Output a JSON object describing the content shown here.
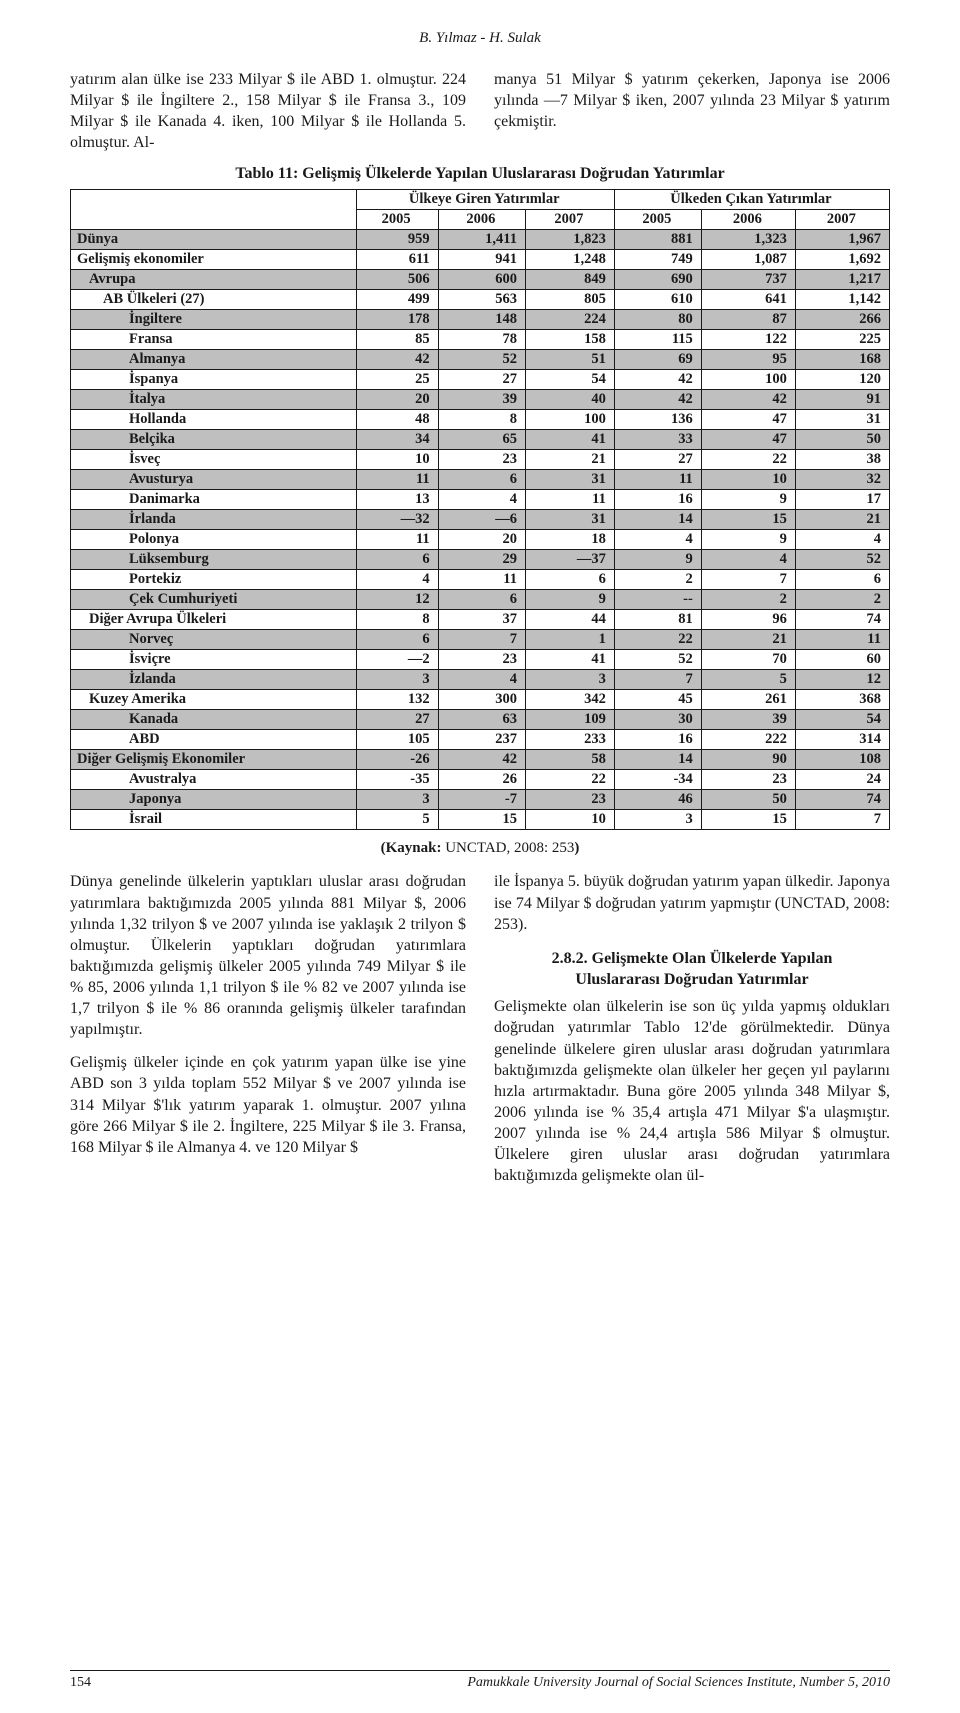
{
  "running_head": "B. Yılmaz - H. Sulak",
  "top_left_para": "yatırım alan ülke ise 233 Milyar $ ile ABD 1. olmuştur. 224 Milyar $ ile İngiltere 2., 158 Milyar $ ile Fransa 3., 109 Milyar $ ile Kanada 4. iken, 100 Milyar $ ile Hollanda 5. olmuştur. Al-",
  "top_right_para": "manya 51 Milyar $ yatırım çekerken, Japonya ise 2006 yılında —7 Milyar $ iken, 2007 yılında 23 Milyar $ yatırım çekmiştir.",
  "table_caption": "Tablo 11: Gelişmiş Ülkelerde Yapılan Uluslararası Doğrudan Yatırımlar",
  "table": {
    "group_headers": [
      "Ülkeye Giren Yatırımlar",
      "Ülkeden Çıkan Yatırımlar"
    ],
    "year_headers": [
      "2005",
      "2006",
      "2007",
      "2005",
      "2006",
      "2007"
    ],
    "rows": [
      {
        "label": "Dünya",
        "indent": 0,
        "shaded": true,
        "vals": [
          "959",
          "1,411",
          "1,823",
          "881",
          "1,323",
          "1,967"
        ]
      },
      {
        "label": "Gelişmiş ekonomiler",
        "indent": 0,
        "shaded": false,
        "vals": [
          "611",
          "941",
          "1,248",
          "749",
          "1,087",
          "1,692"
        ]
      },
      {
        "label": "Avrupa",
        "indent": 1,
        "shaded": true,
        "vals": [
          "506",
          "600",
          "849",
          "690",
          "737",
          "1,217"
        ]
      },
      {
        "label": "AB Ülkeleri (27)",
        "indent": 2,
        "shaded": false,
        "vals": [
          "499",
          "563",
          "805",
          "610",
          "641",
          "1,142"
        ]
      },
      {
        "label": "İngiltere",
        "indent": 3,
        "shaded": true,
        "vals": [
          "178",
          "148",
          "224",
          "80",
          "87",
          "266"
        ]
      },
      {
        "label": "Fransa",
        "indent": 3,
        "shaded": false,
        "vals": [
          "85",
          "78",
          "158",
          "115",
          "122",
          "225"
        ]
      },
      {
        "label": "Almanya",
        "indent": 3,
        "shaded": true,
        "vals": [
          "42",
          "52",
          "51",
          "69",
          "95",
          "168"
        ]
      },
      {
        "label": "İspanya",
        "indent": 3,
        "shaded": false,
        "vals": [
          "25",
          "27",
          "54",
          "42",
          "100",
          "120"
        ]
      },
      {
        "label": "İtalya",
        "indent": 3,
        "shaded": true,
        "vals": [
          "20",
          "39",
          "40",
          "42",
          "42",
          "91"
        ]
      },
      {
        "label": "Hollanda",
        "indent": 3,
        "shaded": false,
        "vals": [
          "48",
          "8",
          "100",
          "136",
          "47",
          "31"
        ]
      },
      {
        "label": "Belçika",
        "indent": 3,
        "shaded": true,
        "vals": [
          "34",
          "65",
          "41",
          "33",
          "47",
          "50"
        ]
      },
      {
        "label": "İsveç",
        "indent": 3,
        "shaded": false,
        "vals": [
          "10",
          "23",
          "21",
          "27",
          "22",
          "38"
        ]
      },
      {
        "label": "Avusturya",
        "indent": 3,
        "shaded": true,
        "vals": [
          "11",
          "6",
          "31",
          "11",
          "10",
          "32"
        ]
      },
      {
        "label": "Danimarka",
        "indent": 3,
        "shaded": false,
        "vals": [
          "13",
          "4",
          "11",
          "16",
          "9",
          "17"
        ]
      },
      {
        "label": "İrlanda",
        "indent": 3,
        "shaded": true,
        "vals": [
          "—32",
          "—6",
          "31",
          "14",
          "15",
          "21"
        ]
      },
      {
        "label": "Polonya",
        "indent": 3,
        "shaded": false,
        "vals": [
          "11",
          "20",
          "18",
          "4",
          "9",
          "4"
        ]
      },
      {
        "label": "Lüksemburg",
        "indent": 3,
        "shaded": true,
        "vals": [
          "6",
          "29",
          "—37",
          "9",
          "4",
          "52"
        ]
      },
      {
        "label": "Portekiz",
        "indent": 3,
        "shaded": false,
        "vals": [
          "4",
          "11",
          "6",
          "2",
          "7",
          "6"
        ]
      },
      {
        "label": "Çek Cumhuriyeti",
        "indent": 3,
        "shaded": true,
        "vals": [
          "12",
          "6",
          "9",
          "--",
          "2",
          "2"
        ]
      },
      {
        "label": "Diğer Avrupa Ülkeleri",
        "indent": 1,
        "shaded": false,
        "vals": [
          "8",
          "37",
          "44",
          "81",
          "96",
          "74"
        ]
      },
      {
        "label": "Norveç",
        "indent": 3,
        "shaded": true,
        "vals": [
          "6",
          "7",
          "1",
          "22",
          "21",
          "11"
        ]
      },
      {
        "label": "İsviçre",
        "indent": 3,
        "shaded": false,
        "vals": [
          "—2",
          "23",
          "41",
          "52",
          "70",
          "60"
        ]
      },
      {
        "label": "İzlanda",
        "indent": 3,
        "shaded": true,
        "vals": [
          "3",
          "4",
          "3",
          "7",
          "5",
          "12"
        ]
      },
      {
        "label": "Kuzey Amerika",
        "indent": 1,
        "shaded": false,
        "vals": [
          "132",
          "300",
          "342",
          "45",
          "261",
          "368"
        ]
      },
      {
        "label": "Kanada",
        "indent": 3,
        "shaded": true,
        "vals": [
          "27",
          "63",
          "109",
          "30",
          "39",
          "54"
        ]
      },
      {
        "label": "ABD",
        "indent": 3,
        "shaded": false,
        "vals": [
          "105",
          "237",
          "233",
          "16",
          "222",
          "314"
        ]
      },
      {
        "label": "Diğer Gelişmiş Ekonomiler",
        "indent": 0,
        "shaded": true,
        "vals": [
          "-26",
          "42",
          "58",
          "14",
          "90",
          "108"
        ]
      },
      {
        "label": "Avustralya",
        "indent": 3,
        "shaded": false,
        "vals": [
          "-35",
          "26",
          "22",
          "-34",
          "23",
          "24"
        ]
      },
      {
        "label": "Japonya",
        "indent": 3,
        "shaded": true,
        "vals": [
          "3",
          "-7",
          "23",
          "46",
          "50",
          "74"
        ]
      },
      {
        "label": "İsrail",
        "indent": 3,
        "shaded": false,
        "vals": [
          "5",
          "15",
          "10",
          "3",
          "15",
          "7"
        ]
      }
    ],
    "shaded_bg": "#bfbfbf"
  },
  "source_label": "(Kaynak:",
  "source_text": " UNCTAD, 2008: 253",
  "source_close": ")",
  "bottom_left_p1": "Dünya genelinde ülkelerin yaptıkları uluslar arası doğrudan yatırımlara baktığımızda 2005 yılında 881 Milyar $, 2006 yılında 1,32 trilyon $ ve 2007 yılında ise yaklaşık 2 trilyon $ olmuştur. Ülkelerin yaptıkları doğrudan yatırımlara baktığımızda gelişmiş ülkeler 2005 yılında 749 Milyar $ ile % 85, 2006 yılında 1,1 trilyon $ ile % 82 ve 2007 yılında ise 1,7 trilyon $ ile % 86 oranında gelişmiş ülkeler tarafından yapılmıştır.",
  "bottom_left_p2": "Gelişmiş ülkeler içinde en çok yatırım yapan ülke ise yine ABD son 3 yılda toplam 552 Milyar $ ve 2007 yılında ise 314 Milyar $'lık yatırım yaparak 1. olmuştur. 2007 yılına göre 266 Milyar $ ile 2. İngiltere, 225 Milyar $ ile 3. Fransa, 168 Milyar $ ile Almanya 4. ve 120 Milyar $",
  "bottom_right_p1": "ile İspanya 5. büyük doğrudan yatırım yapan ülkedir. Japonya ise 74 Milyar $ doğrudan yatırım yapmıştır (UNCTAD, 2008: 253).",
  "section_heading_line1": "2.8.2. Gelişmekte Olan Ülkelerde Yapılan",
  "section_heading_line2": "Uluslararası Doğrudan Yatırımlar",
  "bottom_right_p2": "Gelişmekte olan ülkelerin ise son üç yılda yapmış oldukları doğrudan yatırımlar Tablo 12'de görülmektedir. Dünya genelinde ülkelere giren uluslar arası doğrudan yatırımlara baktığımızda gelişmekte olan ülkeler her geçen yıl paylarını hızla artırmaktadır. Buna göre 2005 yılında 348 Milyar $, 2006 yılında ise % 35,4 artışla 471 Milyar $'a ulaşmıştır. 2007 yılında ise % 24,4 artışla 586 Milyar $ olmuştur. Ülkelere giren uluslar arası doğrudan yatırımlara baktığımızda gelişmekte olan ül-",
  "footer_page": "154",
  "footer_journal": "Pamukkale University Journal of Social Sciences Institute, Number 5, 2010"
}
